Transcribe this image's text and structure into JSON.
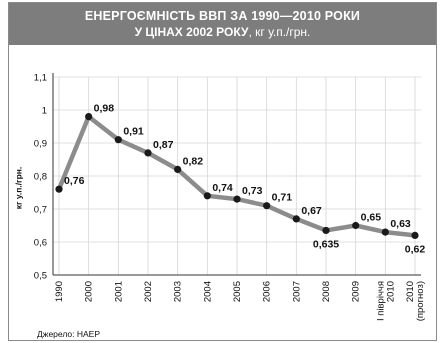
{
  "header": {
    "title_line1": "ЕНЕРГОЄМНІСТЬ ВВП ЗА 1990—2010 РОКИ",
    "title_line2_bold": "У ЦІНАХ 2002 РОКУ",
    "title_line2_rest": ", кг у.п./грн."
  },
  "source": "Джерело: НАЕР",
  "colors": {
    "header_bg": "#7d7d7d",
    "line": "#8c8c8c",
    "marker": "#1a1a1a",
    "grid": "#d6d6d6"
  },
  "chart_data": {
    "type": "line",
    "title": "ЕНЕРГОЄМНІСТЬ ВВП ЗА 1990—2010 РОКИ У ЦІНАХ 2002 РОКУ, кг у.п./грн.",
    "ylabel": "кг у.п./грн.",
    "xlabel": "",
    "ylim": [
      0.5,
      1.1
    ],
    "yticks": [
      "0,5",
      "0,6",
      "0,7",
      "0,8",
      "0,9",
      "1",
      "1,1"
    ],
    "grid": true,
    "categories": [
      [
        "1990"
      ],
      [
        "2000"
      ],
      [
        "2001"
      ],
      [
        "2002"
      ],
      [
        "2003"
      ],
      [
        "2004"
      ],
      [
        "2005"
      ],
      [
        "2006"
      ],
      [
        "2007"
      ],
      [
        "2008"
      ],
      [
        "2009"
      ],
      [
        "І півріччя",
        "2010"
      ],
      [
        "2010",
        "(прогноз)"
      ]
    ],
    "values": [
      0.76,
      0.98,
      0.91,
      0.87,
      0.82,
      0.74,
      0.73,
      0.71,
      0.67,
      0.635,
      0.65,
      0.63,
      0.62
    ],
    "labels": [
      "0,76",
      "0,98",
      "0,91",
      "0,87",
      "0,82",
      "0,74",
      "0,73",
      "0,71",
      "0,67",
      "0,635",
      "0,65",
      "0,63",
      "0,62"
    ]
  }
}
